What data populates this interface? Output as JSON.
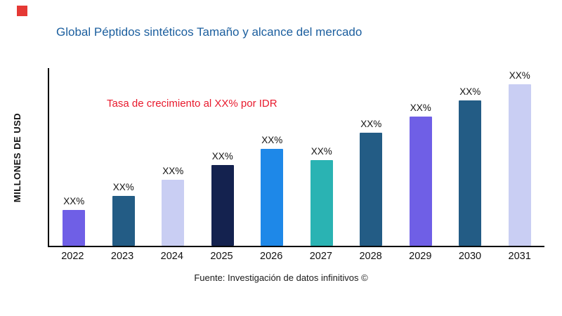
{
  "title": "Global Péptidos sintéticos Tamaño y alcance del mercado",
  "ylabel": "MILLONES DE USD",
  "annotation": "Tasa de crecimiento al XX% por IDR",
  "source": "Fuente: Investigación de datos infinitivos ©",
  "colors": {
    "title_blue": "#1b5e9e",
    "annotation_red": "#e8192c",
    "corner_mark_red": "#e53935"
  },
  "chart_data": {
    "type": "bar",
    "title": "Global Péptidos sintéticos Tamaño y alcance del mercado",
    "xlabel": "",
    "ylabel": "MILLONES DE USD",
    "categories": [
      "2022",
      "2023",
      "2024",
      "2025",
      "2026",
      "2027",
      "2028",
      "2029",
      "2030",
      "2031"
    ],
    "values": [
      22,
      31,
      41,
      50,
      60,
      53,
      70,
      80,
      90,
      100
    ],
    "value_labels": [
      "XX%",
      "XX%",
      "XX%",
      "XX%",
      "XX%",
      "XX%",
      "XX%",
      "XX%",
      "XX%",
      "XX%"
    ],
    "bar_colors": [
      "#6f5fe6",
      "#235c85",
      "#c9cef3",
      "#14224f",
      "#1e88e8",
      "#2ab3b3",
      "#235c85",
      "#6f5fe6",
      "#235c85",
      "#c9cef3"
    ],
    "ylim": [
      0,
      110
    ],
    "grid": false,
    "legend": false,
    "annotation": "Tasa de crecimiento al XX% por IDR",
    "note": "Y axis has no numeric tick labels; values are relative estimates of bar heights"
  }
}
